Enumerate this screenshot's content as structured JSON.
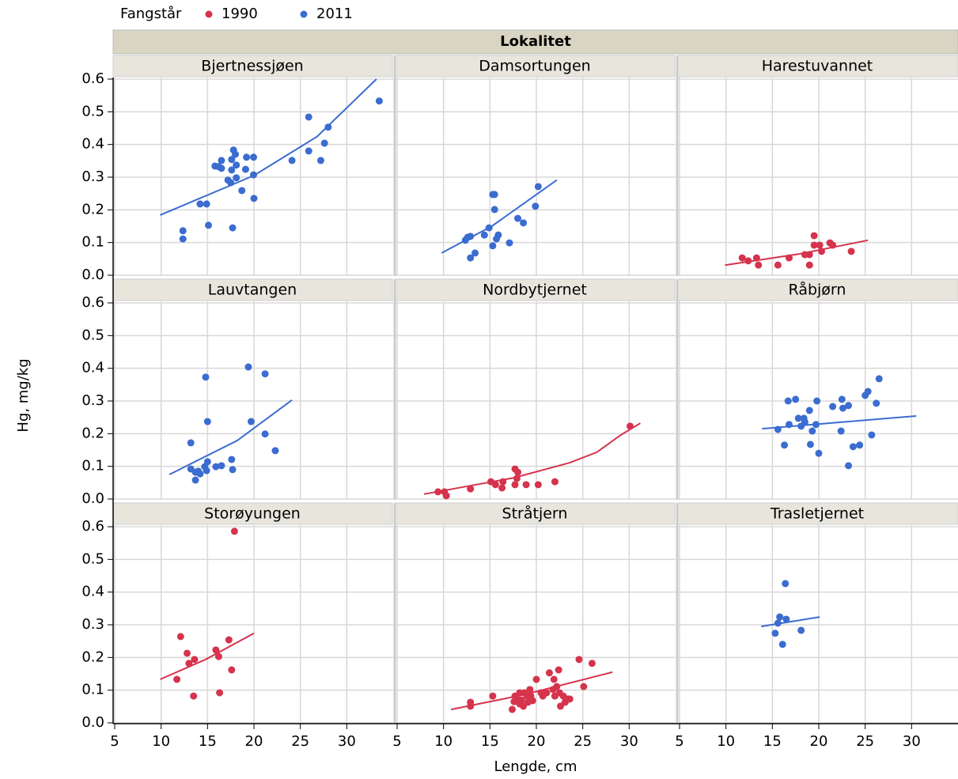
{
  "chart_data": {
    "type": "scatter",
    "title": "Lokalitet",
    "legend": {
      "title": "Fangstår",
      "entries": [
        {
          "name": "1990",
          "color": "#d6334d"
        },
        {
          "name": "2011",
          "color": "#3b6cd0"
        }
      ]
    },
    "xlabel": "Lengde, cm",
    "ylabel": "Hg, mg/kg",
    "xlim": [
      5,
      35
    ],
    "xticks": [
      5,
      10,
      15,
      20,
      25,
      30
    ],
    "ylim": [
      0,
      0.6
    ],
    "yticks": [
      {
        "value": 0,
        "label": "0.0"
      },
      0.1,
      0.2,
      0.3,
      0.4,
      0.5,
      0.6
    ],
    "grid": true,
    "panels": [
      {
        "title": "Bjertnessjøen",
        "color": "#3b6cd0",
        "x": [
          12.35,
          12.35,
          14.2,
          14.9,
          15.1,
          15.8,
          16.2,
          16.5,
          16.5,
          17.2,
          17.5,
          17.6,
          17.6,
          17.8,
          18.0,
          18.1,
          18.1,
          17.7,
          18.7,
          19.1,
          19.2,
          19.96,
          19.96,
          20.0,
          24.1,
          25.9,
          25.9,
          27.2,
          27.6,
          28.0,
          33.5
        ],
        "values": [
          0.136,
          0.111,
          0.218,
          0.218,
          0.153,
          0.334,
          0.332,
          0.351,
          0.327,
          0.291,
          0.283,
          0.354,
          0.322,
          0.383,
          0.37,
          0.337,
          0.298,
          0.145,
          0.259,
          0.324,
          0.361,
          0.361,
          0.307,
          0.235,
          0.351,
          0.484,
          0.38,
          0.351,
          0.404,
          0.453,
          0.533
        ],
        "fit_x": [
          9.9,
          20,
          26.8,
          33.2
        ],
        "fit": [
          0.184,
          0.305,
          0.424,
          0.6
        ]
      },
      {
        "title": "Damsortungen",
        "color": "#3b6cd0",
        "x": [
          12.35,
          12.6,
          12.9,
          12.9,
          13.4,
          14.4,
          14.9,
          15.3,
          15.5,
          15.5,
          15.3,
          15.7,
          15.9,
          17.1,
          18.0,
          18.6,
          19.9,
          20.2
        ],
        "values": [
          0.107,
          0.116,
          0.119,
          0.053,
          0.068,
          0.123,
          0.145,
          0.247,
          0.247,
          0.201,
          0.09,
          0.111,
          0.123,
          0.099,
          0.174,
          0.16,
          0.211,
          0.271
        ],
        "fit_x": [
          9.8,
          15.2,
          22.2
        ],
        "fit": [
          0.068,
          0.15,
          0.291
        ]
      },
      {
        "title": "Harestuvannet",
        "color": "#d6334d",
        "x": [
          11.75,
          12.4,
          13.3,
          13.5,
          15.6,
          16.8,
          18.5,
          19.0,
          19.0,
          19.5,
          19.5,
          20.1,
          20.3,
          21.2,
          21.5,
          23.5
        ],
        "values": [
          0.053,
          0.044,
          0.053,
          0.031,
          0.031,
          0.053,
          0.063,
          0.063,
          0.031,
          0.092,
          0.121,
          0.092,
          0.073,
          0.099,
          0.092,
          0.073
        ],
        "fit_x": [
          9.9,
          17.9,
          25.3
        ],
        "fit": [
          0.031,
          0.065,
          0.107
        ]
      },
      {
        "title": "Lauvtangen",
        "color": "#3b6cd0",
        "x": [
          13.2,
          13.2,
          13.7,
          13.7,
          14.0,
          14.2,
          14.7,
          14.9,
          15.0,
          14.8,
          15.0,
          15.9,
          16.5,
          17.6,
          17.7,
          19.4,
          19.7,
          21.2,
          21.2,
          22.3
        ],
        "values": [
          0.172,
          0.092,
          0.082,
          0.058,
          0.085,
          0.077,
          0.099,
          0.087,
          0.114,
          0.373,
          0.237,
          0.099,
          0.102,
          0.121,
          0.09,
          0.404,
          0.237,
          0.199,
          0.383,
          0.148
        ],
        "fit_x": [
          10.9,
          18.2,
          24.1
        ],
        "fit": [
          0.075,
          0.179,
          0.303
        ]
      },
      {
        "title": "Nordbytjernet",
        "color": "#d6334d",
        "x": [
          9.4,
          10.1,
          10.3,
          12.9,
          15.1,
          15.6,
          16.3,
          16.4,
          17.7,
          17.7,
          18.0,
          17.9,
          18.9,
          20.2,
          22.0,
          30.1
        ],
        "values": [
          0.022,
          0.022,
          0.01,
          0.031,
          0.053,
          0.044,
          0.034,
          0.053,
          0.044,
          0.092,
          0.082,
          0.063,
          0.044,
          0.044,
          0.053,
          0.223
        ],
        "fit_x": [
          7.9,
          17.6,
          23.6,
          26.5,
          29.1,
          31.2
        ],
        "fit": [
          0.015,
          0.065,
          0.111,
          0.143,
          0.196,
          0.232
        ]
      },
      {
        "title": "Råbjørn",
        "color": "#3b6cd0",
        "x": [
          15.6,
          16.3,
          16.7,
          16.8,
          17.5,
          17.8,
          18.1,
          18.4,
          18.5,
          19.0,
          19.1,
          19.3,
          19.7,
          19.8,
          20.0,
          21.5,
          22.4,
          22.5,
          22.6,
          23.2,
          23.2,
          23.7,
          24.4,
          25.0,
          25.3,
          25.7,
          26.2,
          26.5
        ],
        "values": [
          0.213,
          0.165,
          0.3,
          0.228,
          0.305,
          0.247,
          0.223,
          0.247,
          0.235,
          0.271,
          0.167,
          0.208,
          0.228,
          0.3,
          0.14,
          0.283,
          0.208,
          0.305,
          0.278,
          0.286,
          0.102,
          0.16,
          0.165,
          0.317,
          0.329,
          0.196,
          0.293,
          0.368
        ],
        "fit_x": [
          13.9,
          30.5
        ],
        "fit": [
          0.215,
          0.254
        ]
      },
      {
        "title": "Storøyungen",
        "color": "#d6334d",
        "x": [
          11.7,
          12.1,
          12.8,
          13.0,
          13.6,
          13.5,
          15.9,
          16.2,
          16.3,
          17.3,
          17.6,
          17.9
        ],
        "values": [
          0.133,
          0.264,
          0.213,
          0.182,
          0.194,
          0.082,
          0.223,
          0.203,
          0.092,
          0.254,
          0.162,
          0.586
        ],
        "fit_x": [
          9.9,
          14.8,
          20.0
        ],
        "fit": [
          0.133,
          0.194,
          0.274
        ]
      },
      {
        "title": "Stråtjern",
        "color": "#d6334d",
        "x": [
          12.9,
          12.9,
          15.3,
          17.4,
          17.6,
          17.7,
          17.9,
          18.2,
          18.2,
          18.4,
          18.6,
          18.7,
          19.0,
          19.1,
          19.3,
          19.4,
          19.6,
          20.0,
          20.5,
          20.7,
          21.1,
          21.4,
          21.8,
          21.9,
          22.0,
          22.2,
          22.4,
          22.5,
          22.6,
          22.9,
          23.1,
          23.4,
          23.6,
          24.6,
          25.1,
          26.0
        ],
        "values": [
          0.063,
          0.051,
          0.082,
          0.041,
          0.065,
          0.082,
          0.073,
          0.092,
          0.058,
          0.07,
          0.051,
          0.092,
          0.082,
          0.063,
          0.102,
          0.082,
          0.068,
          0.133,
          0.092,
          0.082,
          0.092,
          0.153,
          0.102,
          0.133,
          0.082,
          0.111,
          0.162,
          0.092,
          0.051,
          0.082,
          0.063,
          0.073,
          0.073,
          0.194,
          0.111,
          0.182
        ],
        "fit_x": [
          10.8,
          18.5,
          28.2
        ],
        "fit": [
          0.041,
          0.085,
          0.155
        ]
      },
      {
        "title": "Trasletjernet",
        "color": "#3b6cd0",
        "x": [
          15.3,
          15.6,
          15.8,
          16.1,
          16.4,
          16.5,
          18.1
        ],
        "values": [
          0.274,
          0.305,
          0.324,
          0.24,
          0.426,
          0.317,
          0.283
        ],
        "fit_x": [
          13.8,
          20.1
        ],
        "fit": [
          0.295,
          0.324
        ]
      }
    ]
  }
}
